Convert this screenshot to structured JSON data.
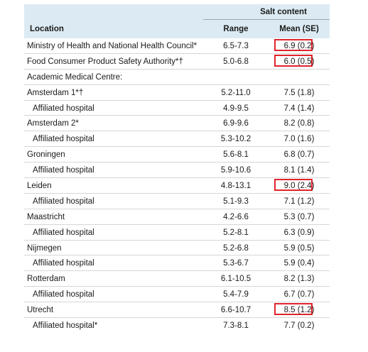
{
  "header": {
    "group_label": "Salt content",
    "col_location": "Location",
    "col_range": "Range",
    "col_mean": "Mean (SE)"
  },
  "rows": [
    {
      "location": "Ministry of Health and National Health Council*",
      "range": "6.5-7.3",
      "mean": "6.9 (0.2)",
      "indent": false,
      "highlight": true
    },
    {
      "location": "Food Consumer Product Safety Authority*†",
      "range": "5.0-6.8",
      "mean": "6.0 (0.5)",
      "indent": false,
      "highlight": true
    },
    {
      "location": "Academic Medical Centre:",
      "range": "",
      "mean": "",
      "indent": false,
      "highlight": false
    },
    {
      "location": "Amsterdam 1*†",
      "range": "5.2-11.0",
      "mean": "7.5 (1.8)",
      "indent": false,
      "highlight": false
    },
    {
      "location": "Affiliated hospital",
      "range": "4.9-9.5",
      "mean": "7.4 (1.4)",
      "indent": true,
      "highlight": false
    },
    {
      "location": "Amsterdam 2*",
      "range": "6.9-9.6",
      "mean": "8.2 (0.8)",
      "indent": false,
      "highlight": false
    },
    {
      "location": "Affiliated hospital",
      "range": "5.3-10.2",
      "mean": "7.0 (1.6)",
      "indent": true,
      "highlight": false
    },
    {
      "location": "Groningen",
      "range": "5.6-8.1",
      "mean": "6.8 (0.7)",
      "indent": false,
      "highlight": false
    },
    {
      "location": "Affiliated hospital",
      "range": "5.9-10.6",
      "mean": "8.1 (1.4)",
      "indent": true,
      "highlight": false
    },
    {
      "location": "Leiden",
      "range": "4.8-13.1",
      "mean": "9.0 (2.4)",
      "indent": false,
      "highlight": true
    },
    {
      "location": "Affiliated hospital",
      "range": "5.1-9.3",
      "mean": "7.1 (1.2)",
      "indent": true,
      "highlight": false
    },
    {
      "location": "Maastricht",
      "range": "4.2-6.6",
      "mean": "5.3 (0.7)",
      "indent": false,
      "highlight": false
    },
    {
      "location": "Affiliated hospital",
      "range": "5.2-8.1",
      "mean": "6.3 (0.9)",
      "indent": true,
      "highlight": false
    },
    {
      "location": "Nijmegen",
      "range": "5.2-6.8",
      "mean": "5.9 (0.5)",
      "indent": false,
      "highlight": false
    },
    {
      "location": "Affiliated hospital",
      "range": "5.3-6.7",
      "mean": "5.9 (0.4)",
      "indent": true,
      "highlight": false
    },
    {
      "location": "Rotterdam",
      "range": "6.1-10.5",
      "mean": "8.2 (1.3)",
      "indent": false,
      "highlight": false
    },
    {
      "location": "Affiliated hospital",
      "range": "5.4-7.9",
      "mean": "6.7 (0.7)",
      "indent": true,
      "highlight": false
    },
    {
      "location": "Utrecht",
      "range": "6.6-10.7",
      "mean": "8.5 (1.2)",
      "indent": false,
      "highlight": true
    },
    {
      "location": "Affiliated hospital*",
      "range": "7.3-8.1",
      "mean": "7.7 (0.2)",
      "indent": true,
      "highlight": false
    }
  ],
  "colors": {
    "header_bg": "#dcebf3",
    "highlight_box": "#e0242b",
    "row_divider": "#d6d6d6"
  }
}
